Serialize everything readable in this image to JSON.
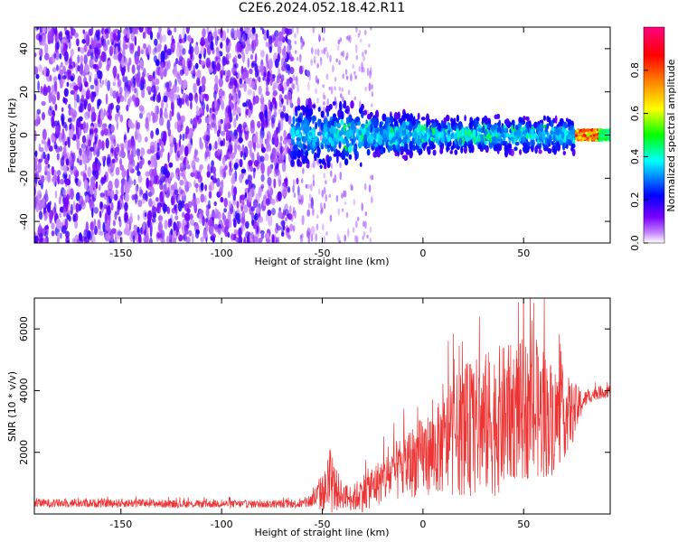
{
  "chart_data": [
    {
      "type": "heatmap",
      "title": "C2E6.2024.052.18.42.R11",
      "xlabel": "Height of straight line (km)",
      "ylabel": "Frequency (Hz)",
      "xlim": [
        -193,
        93
      ],
      "ylim": [
        -50,
        50
      ],
      "x_ticks": [
        -150,
        -100,
        -50,
        0,
        50
      ],
      "y_ticks": [
        -40,
        -20,
        0,
        20,
        40
      ],
      "colorbar": {
        "label": "Normalized spectral amplitude",
        "range": [
          0,
          1
        ],
        "ticks": [
          0.0,
          0.2,
          0.4,
          0.6,
          0.8
        ],
        "colormap": [
          "#ffffff",
          "#7a00ff",
          "#0000ff",
          "#00ffff",
          "#00ff00",
          "#ffff00",
          "#ff8000",
          "#ff0000",
          "#ff0080"
        ]
      },
      "regions": [
        {
          "x": [
            -193,
            -65
          ],
          "description_value": "scattered low amplitude 0.1-0.3 across all frequencies"
        },
        {
          "x": [
            -65,
            0
          ],
          "freq_band": [
            -20,
            20
          ],
          "amplitude": [
            0.2,
            0.4
          ]
        },
        {
          "x": [
            0,
            75
          ],
          "freq_band": [
            -10,
            10
          ],
          "amplitude": [
            0.2,
            0.45
          ]
        },
        {
          "x": [
            78,
            93
          ],
          "freq_band": [
            -3,
            3
          ],
          "amplitude": [
            0.4,
            0.9
          ]
        }
      ],
      "grid": false
    },
    {
      "type": "line",
      "xlabel": "Height of straight line (km)",
      "ylabel": "SNR (10 * v/v)",
      "xlim": [
        -193,
        93
      ],
      "ylim": [
        0,
        7000
      ],
      "x_ticks": [
        -150,
        -100,
        -50,
        0,
        50
      ],
      "y_ticks": [
        2000,
        4000,
        6000
      ],
      "color": "#ee3333",
      "series": [
        {
          "x": [
            -193,
            -180,
            -160,
            -140,
            -120,
            -100,
            -80,
            -60,
            -55,
            -50,
            -45,
            -40,
            -35,
            -30,
            -25,
            -20,
            -15,
            -10,
            -5,
            0,
            5,
            10,
            15,
            20,
            25,
            30,
            35,
            40,
            45,
            50,
            55,
            60,
            65,
            70,
            75,
            80,
            85,
            93
          ],
          "y": [
            350,
            350,
            350,
            350,
            320,
            330,
            320,
            330,
            450,
            700,
            900,
            600,
            500,
            700,
            900,
            1100,
            1300,
            1500,
            1700,
            1900,
            2000,
            2200,
            2500,
            2700,
            2800,
            2900,
            3000,
            3100,
            3300,
            3400,
            3300,
            3200,
            3100,
            3200,
            3300,
            3700,
            3900,
            4000
          ],
          "spread": [
            200,
            200,
            200,
            200,
            180,
            180,
            180,
            200,
            400,
            900,
            1300,
            600,
            600,
            900,
            1000,
            1100,
            1300,
            1600,
            1700,
            1800,
            2000,
            2300,
            2700,
            3000,
            3200,
            3300,
            3500,
            3400,
            3200,
            3300,
            3200,
            3000,
            2600,
            2000,
            1400,
            400,
            300,
            300
          ]
        }
      ],
      "grid": false
    }
  ]
}
